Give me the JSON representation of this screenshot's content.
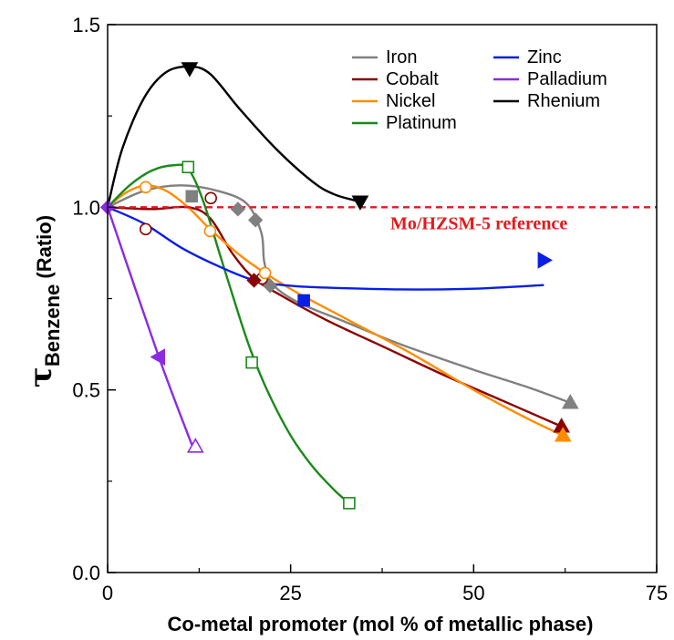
{
  "chart_data": {
    "type": "scatter",
    "title": "",
    "xlabel": "Co-metal promoter (mol % of metallic phase)",
    "ylabel": {
      "main": "τ",
      "subscript": "Benzene",
      "suffix": " (Ratio)"
    },
    "xlim": [
      0,
      75
    ],
    "ylim": [
      0.0,
      1.5
    ],
    "xticks": [
      "0",
      "25",
      "50",
      "75"
    ],
    "yticks": [
      "0.0",
      "0.5",
      "1.0",
      "1.5"
    ],
    "grid": false,
    "legend_position": "top-right",
    "reference_line": {
      "y": 1.0,
      "label": "Mo/HZSM-5 reference",
      "color": "#e31a1c"
    },
    "series": [
      {
        "name": "Iron",
        "color": "#808080",
        "markers": [
          {
            "x": 11.5,
            "y": 1.03,
            "shape": "square",
            "filled": true
          },
          {
            "x": 17.8,
            "y": 0.995,
            "shape": "diamond",
            "filled": true
          },
          {
            "x": 20.2,
            "y": 0.965,
            "shape": "diamond",
            "filled": true
          },
          {
            "x": 22.2,
            "y": 0.785,
            "shape": "diamond",
            "filled": true
          },
          {
            "x": 63.2,
            "y": 0.465,
            "shape": "triangle-up",
            "filled": true
          }
        ],
        "curve": [
          [
            0,
            1.0
          ],
          [
            5,
            1.045
          ],
          [
            10,
            1.06
          ],
          [
            15,
            1.045
          ],
          [
            19,
            1.01
          ],
          [
            21,
            0.93
          ],
          [
            21.4,
            0.85
          ],
          [
            22.5,
            0.79
          ],
          [
            26,
            0.74
          ],
          [
            32,
            0.69
          ],
          [
            40,
            0.625
          ],
          [
            50,
            0.555
          ],
          [
            57,
            0.51
          ],
          [
            63.2,
            0.465
          ]
        ]
      },
      {
        "name": "Cobalt",
        "color": "#8b0000",
        "markers": [
          {
            "x": 5.2,
            "y": 0.94,
            "shape": "circle",
            "filled": false
          },
          {
            "x": 14.1,
            "y": 1.025,
            "shape": "circle",
            "filled": false
          },
          {
            "x": 21.1,
            "y": 0.805,
            "shape": "circle",
            "filled": false
          },
          {
            "x": 20.0,
            "y": 0.8,
            "shape": "diamond",
            "filled": true
          },
          {
            "x": 62.0,
            "y": 0.4,
            "shape": "triangle-up",
            "filled": true
          }
        ],
        "curve": [
          [
            0,
            1.0
          ],
          [
            6,
            0.995
          ],
          [
            11,
            1.0
          ],
          [
            14,
            0.97
          ],
          [
            17,
            0.875
          ],
          [
            20,
            0.805
          ],
          [
            24,
            0.755
          ],
          [
            30,
            0.69
          ],
          [
            38,
            0.615
          ],
          [
            46,
            0.54
          ],
          [
            54,
            0.47
          ],
          [
            62,
            0.4
          ]
        ]
      },
      {
        "name": "Nickel",
        "color": "#ff8c00",
        "markers": [
          {
            "x": 5.2,
            "y": 1.055,
            "shape": "circle",
            "filled": false
          },
          {
            "x": 14.0,
            "y": 0.935,
            "shape": "circle",
            "filled": false
          },
          {
            "x": 21.5,
            "y": 0.82,
            "shape": "circle",
            "filled": false
          },
          {
            "x": 62.2,
            "y": 0.375,
            "shape": "triangle-up",
            "filled": true
          }
        ],
        "curve": [
          [
            0,
            1.0
          ],
          [
            2.5,
            1.04
          ],
          [
            5.2,
            1.06
          ],
          [
            8,
            1.045
          ],
          [
            11,
            1.0
          ],
          [
            14,
            0.94
          ],
          [
            18,
            0.87
          ],
          [
            21.5,
            0.82
          ],
          [
            26,
            0.765
          ],
          [
            33,
            0.69
          ],
          [
            41,
            0.605
          ],
          [
            50,
            0.5
          ],
          [
            57,
            0.425
          ],
          [
            62.2,
            0.375
          ]
        ]
      },
      {
        "name": "Platinum",
        "color": "#1a8a1a",
        "markers": [
          {
            "x": 11.0,
            "y": 1.11,
            "shape": "square",
            "filled": false
          },
          {
            "x": 19.7,
            "y": 0.575,
            "shape": "square",
            "filled": false
          },
          {
            "x": 33.0,
            "y": 0.19,
            "shape": "square",
            "filled": false
          }
        ],
        "curve": [
          [
            0,
            1.0
          ],
          [
            3,
            1.06
          ],
          [
            6,
            1.1
          ],
          [
            9,
            1.115
          ],
          [
            11,
            1.105
          ],
          [
            13,
            1.02
          ],
          [
            15.5,
            0.86
          ],
          [
            18,
            0.7
          ],
          [
            19.7,
            0.6
          ],
          [
            22,
            0.49
          ],
          [
            25,
            0.375
          ],
          [
            28,
            0.29
          ],
          [
            31,
            0.225
          ],
          [
            33,
            0.19
          ]
        ]
      },
      {
        "name": "Zinc",
        "color": "#0a1ee6",
        "markers": [
          {
            "x": 26.8,
            "y": 0.745,
            "shape": "square",
            "filled": true
          },
          {
            "x": 59.6,
            "y": 0.855,
            "shape": "triangle-right",
            "filled": true
          }
        ],
        "curve": [
          [
            0,
            1.0
          ],
          [
            5,
            0.955
          ],
          [
            10,
            0.89
          ],
          [
            15,
            0.84
          ],
          [
            20,
            0.8
          ],
          [
            25,
            0.785
          ],
          [
            30,
            0.78
          ],
          [
            40,
            0.775
          ],
          [
            50,
            0.777
          ],
          [
            59.6,
            0.787
          ]
        ]
      },
      {
        "name": "Palladium",
        "color": "#8b2be2",
        "markers": [
          {
            "x": 7.0,
            "y": 0.59,
            "shape": "triangle-left",
            "filled": true
          },
          {
            "x": 12.0,
            "y": 0.345,
            "shape": "triangle-up",
            "filled": false
          }
        ],
        "curve": [
          [
            0,
            1.0
          ],
          [
            7.0,
            0.59
          ],
          [
            11.5,
            0.35
          ]
        ]
      },
      {
        "name": "Rhenium",
        "color": "#000000",
        "markers": [
          {
            "x": 11.2,
            "y": 1.38,
            "shape": "triangle-down",
            "filled": true
          },
          {
            "x": 34.5,
            "y": 1.015,
            "shape": "triangle-down",
            "filled": true
          }
        ],
        "curve": [
          [
            0,
            1.0
          ],
          [
            2,
            1.16
          ],
          [
            5,
            1.3
          ],
          [
            8,
            1.37
          ],
          [
            11.2,
            1.385
          ],
          [
            14,
            1.365
          ],
          [
            18,
            1.27
          ],
          [
            23,
            1.16
          ],
          [
            28,
            1.07
          ],
          [
            31,
            1.035
          ],
          [
            34.5,
            1.015
          ]
        ]
      }
    ],
    "origin_marker": {
      "x": 0,
      "y": 1.0,
      "shape": "diamond",
      "filled": true,
      "color": "#8b2be2"
    }
  }
}
